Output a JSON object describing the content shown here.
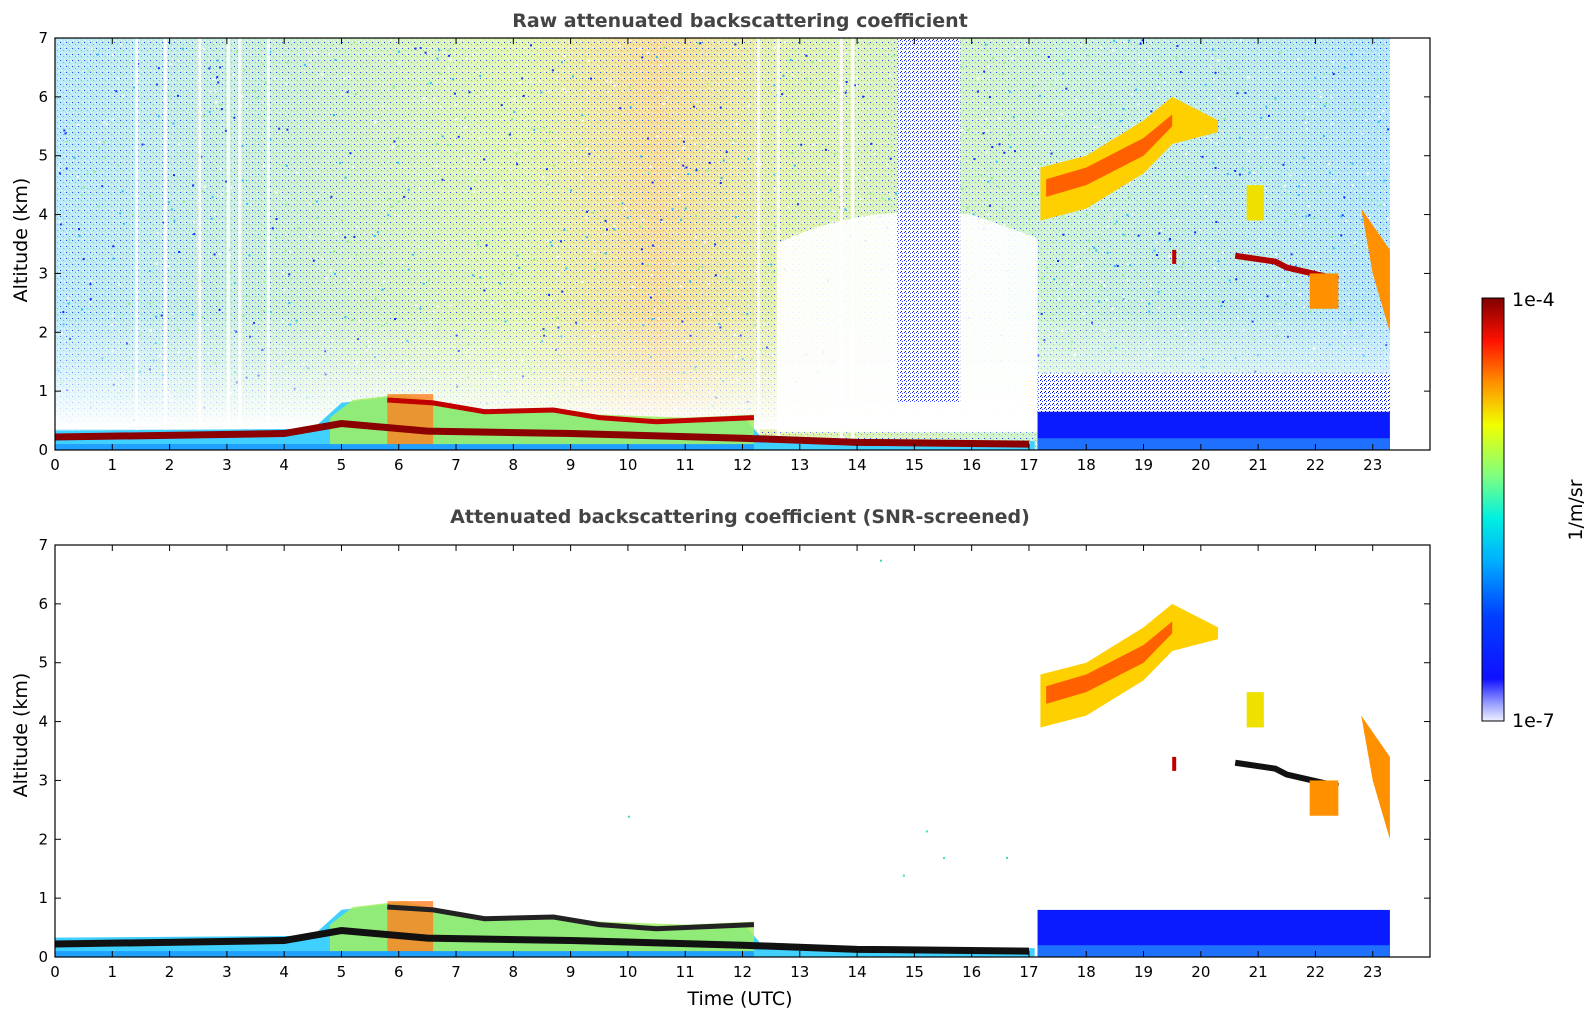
{
  "chart_data": [
    {
      "type": "heatmap",
      "title": "Raw attenuated backscattering coefficient",
      "xlabel": "",
      "ylabel": "Altitude (km)",
      "xlim": [
        0,
        24
      ],
      "ylim": [
        0,
        7
      ],
      "x_ticks": [
        "0",
        "1",
        "2",
        "3",
        "4",
        "5",
        "6",
        "7",
        "8",
        "9",
        "10",
        "11",
        "12",
        "13",
        "14",
        "15",
        "16",
        "17",
        "18",
        "19",
        "20",
        "21",
        "22",
        "23"
      ],
      "y_ticks": [
        "0",
        "1",
        "2",
        "3",
        "4",
        "5",
        "6",
        "7"
      ],
      "features": [
        {
          "name": "boundary layer",
          "t": [
            0,
            4.5,
            5,
            6,
            7,
            9,
            10,
            11,
            12,
            12.3,
            14,
            16,
            17.1
          ],
          "top_km": [
            0.33,
            0.36,
            0.8,
            0.92,
            0.72,
            0.62,
            0.55,
            0.52,
            0.58,
            0.25,
            0.18,
            0.14,
            0.15
          ]
        },
        {
          "name": "cirrus",
          "t": [
            17.2,
            18,
            19,
            19.5,
            20.3
          ],
          "base_km": [
            3.9,
            4.1,
            4.7,
            5.2,
            5.4
          ],
          "top_km": [
            4.8,
            5.0,
            5.6,
            6.0,
            5.6
          ]
        },
        {
          "name": "mid-level cloud",
          "t": [
            20.6,
            21.3,
            21.5,
            22.4
          ],
          "alt_km": [
            3.3,
            3.2,
            3.1,
            2.9
          ]
        },
        {
          "name": "low cloud",
          "t": [
            17.2,
            23.3
          ],
          "top_km": [
            0.65,
            0.7
          ]
        }
      ],
      "data_end_hour": 23.3
    },
    {
      "type": "heatmap",
      "title": "Attenuated backscattering coefficient (SNR-screened)",
      "xlabel": "Time (UTC)",
      "ylabel": "Altitude (km)",
      "xlim": [
        0,
        24
      ],
      "ylim": [
        0,
        7
      ],
      "x_ticks": [
        "0",
        "1",
        "2",
        "3",
        "4",
        "5",
        "6",
        "7",
        "8",
        "9",
        "10",
        "11",
        "12",
        "13",
        "14",
        "15",
        "16",
        "17",
        "18",
        "19",
        "20",
        "21",
        "22",
        "23"
      ],
      "y_ticks": [
        "0",
        "1",
        "2",
        "3",
        "4",
        "5",
        "6",
        "7"
      ],
      "data_end_hour": 23.3
    }
  ],
  "colorbar": {
    "label": "1/m/sr",
    "max_label": "1e-4",
    "min_label": "1e-7",
    "scale": "log",
    "colormap": [
      "#7f0000",
      "#ff0000",
      "#ff8000",
      "#ffff00",
      "#80ff80",
      "#00ffff",
      "#0080ff",
      "#0000ff",
      "#e8e8ff"
    ]
  }
}
